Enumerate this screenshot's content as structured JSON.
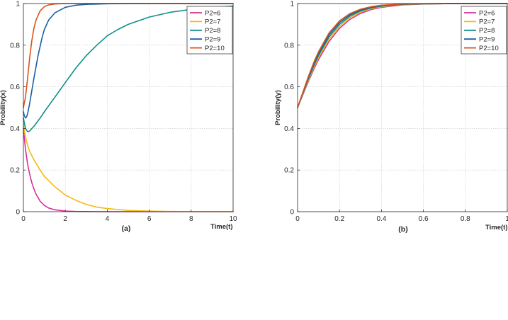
{
  "chart_data": [
    {
      "type": "line",
      "caption": "(a)",
      "xlabel": "Time(t)",
      "ylabel": "Probility(x)",
      "xlim": [
        0,
        10
      ],
      "ylim": [
        0,
        1
      ],
      "xticks": [
        0,
        2,
        4,
        6,
        8,
        10
      ],
      "yticks": [
        0,
        0.2,
        0.4,
        0.6,
        0.8,
        1
      ],
      "grid": true,
      "legend_position": "top-right",
      "series": [
        {
          "name": "P2=6",
          "color": "#d62f9b",
          "x": [
            0,
            0.1,
            0.2,
            0.3,
            0.4,
            0.5,
            0.6,
            0.8,
            1.0,
            1.2,
            1.5,
            2.0,
            2.5,
            3.0,
            4.0,
            5.0,
            6.0,
            8.0,
            10.0
          ],
          "y": [
            0.4,
            0.3,
            0.23,
            0.18,
            0.14,
            0.11,
            0.085,
            0.05,
            0.03,
            0.018,
            0.009,
            0.003,
            0.001,
            0.0005,
            0,
            0,
            0,
            0,
            0
          ]
        },
        {
          "name": "P2=7",
          "color": "#f2bb13",
          "x": [
            0,
            0.1,
            0.2,
            0.3,
            0.5,
            0.8,
            1.0,
            1.5,
            2.0,
            2.5,
            3.0,
            3.5,
            4.0,
            5.0,
            6.0,
            7.0,
            8.0,
            10.0
          ],
          "y": [
            0.42,
            0.36,
            0.32,
            0.29,
            0.25,
            0.2,
            0.17,
            0.12,
            0.08,
            0.055,
            0.035,
            0.022,
            0.015,
            0.006,
            0.003,
            0.001,
            0.0005,
            0
          ]
        },
        {
          "name": "P2=8",
          "color": "#0f8f8a",
          "x": [
            0,
            0.1,
            0.2,
            0.25,
            0.3,
            0.5,
            0.8,
            1.0,
            1.5,
            2.0,
            2.5,
            3.0,
            3.5,
            4.0,
            4.5,
            5.0,
            6.0,
            7.0,
            8.0,
            9.0,
            10.0
          ],
          "y": [
            0.45,
            0.4,
            0.385,
            0.385,
            0.388,
            0.41,
            0.45,
            0.48,
            0.55,
            0.62,
            0.69,
            0.75,
            0.8,
            0.845,
            0.875,
            0.9,
            0.935,
            0.958,
            0.972,
            0.982,
            0.988
          ]
        },
        {
          "name": "P2=9",
          "color": "#1a5fa3",
          "x": [
            0,
            0.05,
            0.1,
            0.15,
            0.2,
            0.3,
            0.5,
            0.7,
            0.9,
            1.0,
            1.2,
            1.5,
            2.0,
            2.5,
            3.0,
            4.0,
            6.0,
            8.0,
            10.0
          ],
          "y": [
            0.48,
            0.46,
            0.45,
            0.455,
            0.47,
            0.52,
            0.64,
            0.75,
            0.84,
            0.875,
            0.92,
            0.955,
            0.982,
            0.992,
            0.996,
            0.999,
            1,
            1,
            1
          ]
        },
        {
          "name": "P2=10",
          "color": "#d9541a",
          "x": [
            0,
            0.1,
            0.2,
            0.3,
            0.4,
            0.5,
            0.6,
            0.8,
            1.0,
            1.2,
            1.5,
            2.0,
            3.0,
            5.0,
            10.0
          ],
          "y": [
            0.5,
            0.55,
            0.64,
            0.74,
            0.82,
            0.88,
            0.92,
            0.965,
            0.985,
            0.993,
            0.998,
            1,
            1,
            1,
            1
          ]
        }
      ]
    },
    {
      "type": "line",
      "caption": "(b)",
      "xlabel": "Time(t)",
      "ylabel": "Probility(y)",
      "xlim": [
        0,
        1
      ],
      "ylim": [
        0,
        1
      ],
      "xticks": [
        0,
        0.2,
        0.4,
        0.6,
        0.8,
        1
      ],
      "yticks": [
        0,
        0.2,
        0.4,
        0.6,
        0.8,
        1
      ],
      "grid": true,
      "legend_position": "top-right",
      "series": [
        {
          "name": "P2=6",
          "color": "#d62f9b",
          "x": [
            0,
            0.02,
            0.05,
            0.08,
            0.1,
            0.15,
            0.2,
            0.25,
            0.3,
            0.35,
            0.4,
            0.5,
            0.6,
            0.7,
            0.8,
            1.0
          ],
          "y": [
            0.5,
            0.5487,
            0.6224,
            0.69,
            0.7311,
            0.8176,
            0.8808,
            0.9241,
            0.9526,
            0.9707,
            0.982,
            0.9933,
            0.9975,
            0.9991,
            0.9997,
            1.0
          ]
        },
        {
          "name": "P2=7",
          "color": "#f2bb13",
          "x": [
            0,
            0.02,
            0.05,
            0.08,
            0.1,
            0.15,
            0.2,
            0.25,
            0.3,
            0.35,
            0.4,
            0.5,
            0.6,
            0.7,
            0.8,
            1.0
          ],
          "y": [
            0.5,
            0.5512,
            0.6283,
            0.6988,
            0.7407,
            0.8288,
            0.8909,
            0.9323,
            0.9587,
            0.975,
            0.985,
            0.9946,
            0.9981,
            0.9993,
            0.9998,
            1.0
          ]
        },
        {
          "name": "P2=8",
          "color": "#0f8f8a",
          "x": [
            0,
            0.02,
            0.05,
            0.08,
            0.1,
            0.15,
            0.2,
            0.25,
            0.3,
            0.35,
            0.4,
            0.5,
            0.6,
            0.7,
            0.8,
            1.0
          ],
          "y": [
            0.5,
            0.5537,
            0.6341,
            0.7073,
            0.7503,
            0.8393,
            0.9002,
            0.9396,
            0.964,
            0.9787,
            0.9876,
            0.9958,
            0.9986,
            0.9995,
            0.9998,
            1.0
          ]
        },
        {
          "name": "P2=9",
          "color": "#1a5fa3",
          "x": [
            0,
            0.02,
            0.05,
            0.08,
            0.1,
            0.15,
            0.2,
            0.25,
            0.3,
            0.35,
            0.4,
            0.5,
            0.6,
            0.7,
            0.8,
            1.0
          ],
          "y": [
            0.5,
            0.5562,
            0.6399,
            0.7157,
            0.7594,
            0.8493,
            0.9089,
            0.9461,
            0.9687,
            0.9819,
            0.9898,
            0.9967,
            0.9989,
            0.9996,
            0.9999,
            1.0
          ]
        },
        {
          "name": "P2=10",
          "color": "#d9541a",
          "x": [
            0,
            0.02,
            0.05,
            0.08,
            0.1,
            0.15,
            0.2,
            0.25,
            0.3,
            0.35,
            0.4,
            0.5,
            0.6,
            0.7,
            0.8,
            1.0
          ],
          "y": [
            0.5,
            0.5586,
            0.6457,
            0.7239,
            0.7685,
            0.8587,
            0.9168,
            0.9521,
            0.9729,
            0.9848,
            0.9916,
            0.9975,
            0.9993,
            0.9998,
            0.9999,
            1.0
          ]
        }
      ]
    }
  ]
}
